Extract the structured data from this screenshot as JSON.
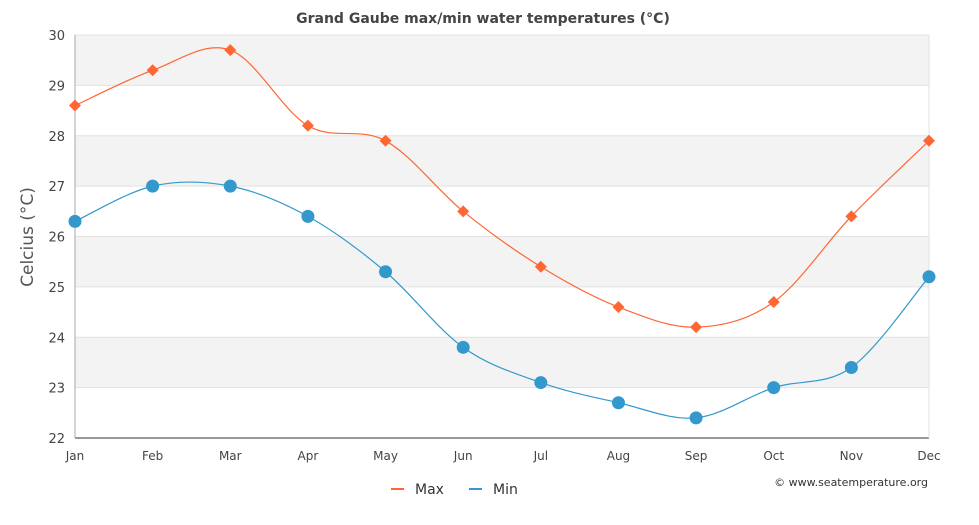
{
  "chart_data": {
    "type": "line",
    "title": "Grand Gaube max/min water temperatures (°C)",
    "xlabel": "",
    "ylabel": "Celcius (°C)",
    "categories": [
      "Jan",
      "Feb",
      "Mar",
      "Apr",
      "May",
      "Jun",
      "Jul",
      "Aug",
      "Sep",
      "Oct",
      "Nov",
      "Dec"
    ],
    "ylim": [
      22,
      30
    ],
    "yticks": [
      "22",
      "23",
      "24",
      "25",
      "26",
      "27",
      "28",
      "29",
      "30"
    ],
    "grid": true,
    "legend_position": "bottom-center",
    "series": [
      {
        "name": "Max",
        "color": "#ff6633",
        "marker": "diamond",
        "values": [
          28.6,
          29.3,
          29.7,
          28.2,
          27.9,
          26.5,
          25.4,
          24.6,
          24.2,
          24.7,
          26.4,
          27.9
        ]
      },
      {
        "name": "Min",
        "color": "#3399cc",
        "marker": "circle",
        "values": [
          26.3,
          27.0,
          27.0,
          26.4,
          25.3,
          23.8,
          23.1,
          22.7,
          22.4,
          23.0,
          23.4,
          25.2
        ]
      }
    ],
    "credit": "© www.seatemperature.org"
  }
}
